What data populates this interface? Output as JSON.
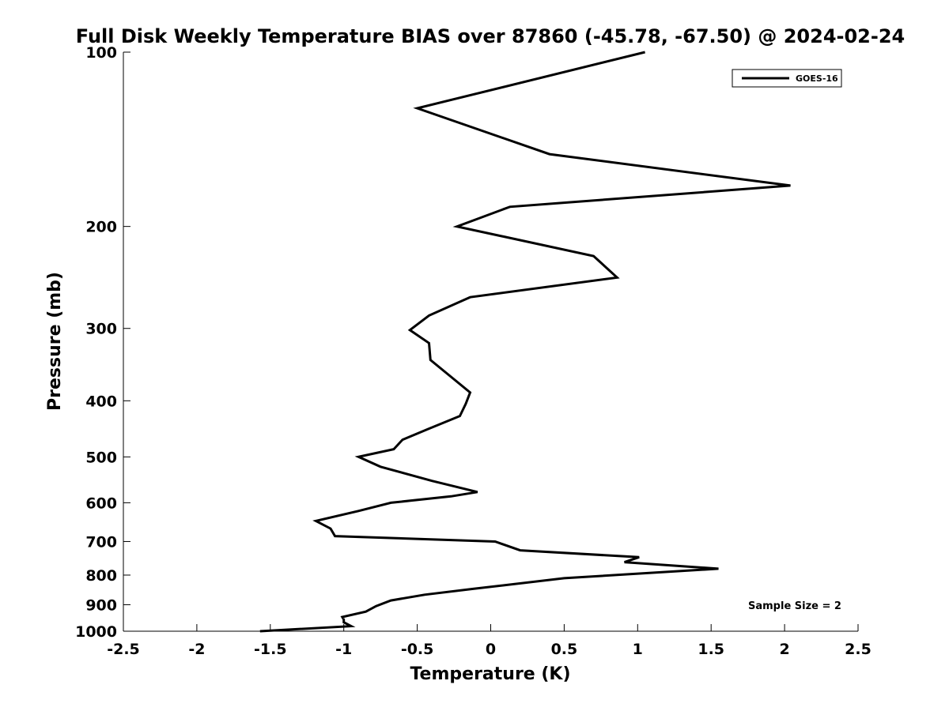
{
  "chart_data": {
    "type": "line",
    "title": "Full Disk Weekly Temperature BIAS over 87860 (-45.78, -67.50) @ 2024-02-24",
    "xlabel": "Temperature (K)",
    "ylabel": "Pressure (mb)",
    "xlim": [
      -2.5,
      2.5
    ],
    "ylim": [
      100,
      1000
    ],
    "yscale": "log",
    "y_reversed": true,
    "xticks": [
      -2.5,
      -2,
      -1.5,
      -1,
      -0.5,
      0,
      0.5,
      1,
      1.5,
      2,
      2.5
    ],
    "xtick_labels": [
      "-2.5",
      "-2",
      "-1.5",
      "-1",
      "-0.5",
      "0",
      "0.5",
      "1",
      "1.5",
      "2",
      "2.5"
    ],
    "yticks": [
      100,
      200,
      300,
      400,
      500,
      600,
      700,
      800,
      900,
      1000
    ],
    "ytick_labels": [
      "100",
      "200",
      "300",
      "400",
      "500",
      "600",
      "700",
      "800",
      "900",
      "1000"
    ],
    "grid": false,
    "legend_position": "top-right",
    "series": [
      {
        "name": "GOES-16",
        "color": "#000000",
        "points": [
          {
            "x": 1.05,
            "y": 100
          },
          {
            "x": -0.5,
            "y": 125
          },
          {
            "x": 0.4,
            "y": 150
          },
          {
            "x": 2.04,
            "y": 170
          },
          {
            "x": 0.13,
            "y": 185
          },
          {
            "x": -0.23,
            "y": 200
          },
          {
            "x": 0.7,
            "y": 225
          },
          {
            "x": 0.86,
            "y": 245
          },
          {
            "x": -0.14,
            "y": 265
          },
          {
            "x": -0.42,
            "y": 285
          },
          {
            "x": -0.55,
            "y": 302
          },
          {
            "x": -0.42,
            "y": 318
          },
          {
            "x": -0.41,
            "y": 340
          },
          {
            "x": -0.28,
            "y": 362
          },
          {
            "x": -0.14,
            "y": 387
          },
          {
            "x": -0.17,
            "y": 405
          },
          {
            "x": -0.21,
            "y": 425
          },
          {
            "x": -0.43,
            "y": 448
          },
          {
            "x": -0.6,
            "y": 467
          },
          {
            "x": -0.66,
            "y": 485
          },
          {
            "x": -0.9,
            "y": 500
          },
          {
            "x": -0.75,
            "y": 520
          },
          {
            "x": -0.4,
            "y": 550
          },
          {
            "x": -0.09,
            "y": 575
          },
          {
            "x": -0.27,
            "y": 585
          },
          {
            "x": -0.68,
            "y": 600
          },
          {
            "x": -0.9,
            "y": 620
          },
          {
            "x": -1.19,
            "y": 645
          },
          {
            "x": -1.09,
            "y": 665
          },
          {
            "x": -1.06,
            "y": 685
          },
          {
            "x": 0.03,
            "y": 700
          },
          {
            "x": 0.2,
            "y": 725
          },
          {
            "x": 1.01,
            "y": 745
          },
          {
            "x": 0.91,
            "y": 760
          },
          {
            "x": 1.55,
            "y": 780
          },
          {
            "x": 0.5,
            "y": 810
          },
          {
            "x": -0.12,
            "y": 845
          },
          {
            "x": -0.45,
            "y": 865
          },
          {
            "x": -0.68,
            "y": 885
          },
          {
            "x": -0.78,
            "y": 905
          },
          {
            "x": -0.85,
            "y": 925
          },
          {
            "x": -1.01,
            "y": 945
          },
          {
            "x": -1.0,
            "y": 955
          },
          {
            "x": -1.0,
            "y": 965
          },
          {
            "x": -0.95,
            "y": 980
          },
          {
            "x": -1.57,
            "y": 1000
          }
        ]
      }
    ],
    "annotations": [
      {
        "text": "Sample Size = 2",
        "position": "bottom-right"
      }
    ]
  }
}
